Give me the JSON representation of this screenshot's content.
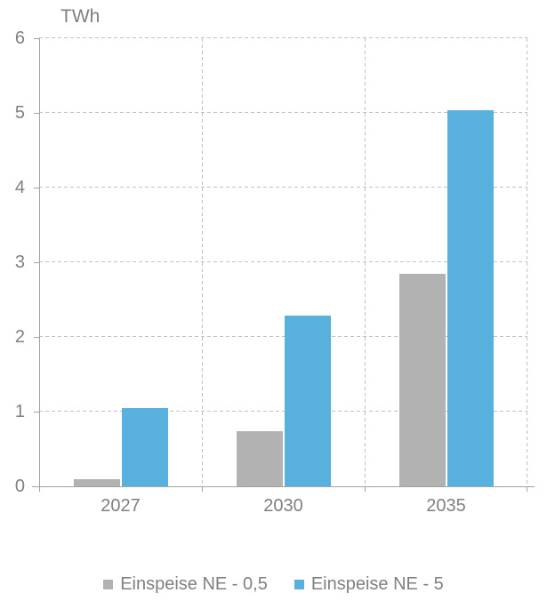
{
  "chart_data": {
    "type": "bar",
    "title": "",
    "ylabel": "TWh",
    "xlabel": "",
    "categories": [
      "2027",
      "2030",
      "2035"
    ],
    "series": [
      {
        "name": "Einspeise NE - 0,5",
        "color": "#b2b2b2",
        "values": [
          0.1,
          0.74,
          2.85
        ]
      },
      {
        "name": "Einspeise NE - 5",
        "color": "#58b0dc",
        "values": [
          1.05,
          2.28,
          5.03
        ]
      }
    ],
    "ylim": [
      0,
      6
    ],
    "ytick_step": 1,
    "yticks": [
      0,
      1,
      2,
      3,
      4,
      5,
      6
    ],
    "grid": "horizontal dashed gridlines at each integer, vertical dashed separators between categories",
    "legend_position": "bottom"
  },
  "colors": {
    "text": "#808080",
    "axis": "#a3a3a3",
    "gridline": "#c3c3c3",
    "background": "#ffffff"
  }
}
